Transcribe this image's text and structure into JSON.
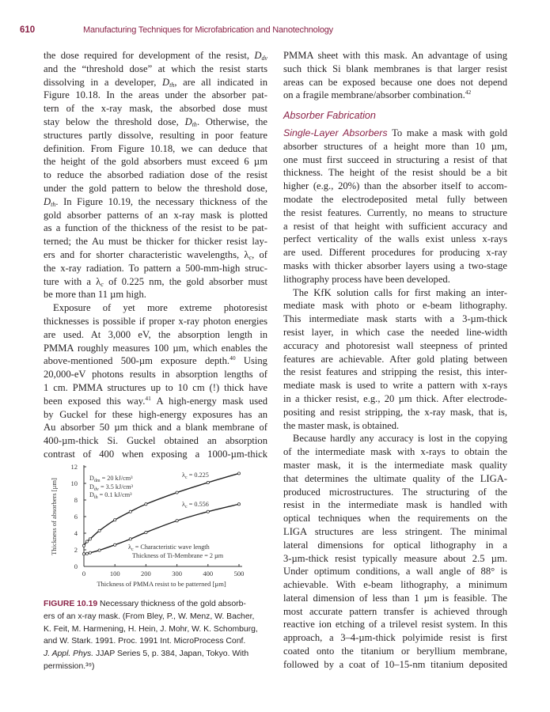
{
  "header": {
    "page_number": "610",
    "title": "Manufacturing Techniques for Microfabrication and Nanotechnology"
  },
  "left_column": {
    "paragraphs": [
      {
        "indent": false,
        "continues": false,
        "lines": [
          [
            "the dose required for development of the resist, ",
            {
              "i": "D"
            },
            {
              "sub": "dv"
            }
          ],
          "and the “threshold dose” at which the resist starts",
          [
            "dissolving in a developer, ",
            {
              "i": "D"
            },
            {
              "sub": "th"
            },
            ", are all indicated in"
          ],
          "Figure 10.18. In the areas under the absorber pat-",
          "tern of the x-ray mask, the absorbed dose must",
          [
            "stay below the threshold dose, ",
            {
              "i": "D"
            },
            {
              "sub": "th"
            },
            ". Otherwise, the"
          ],
          "structures partly dissolve, resulting in poor feature",
          "definition. From Figure 10.18, we can deduce that",
          "the height of the gold absorbers must exceed 6 µm",
          "to reduce the absorbed radiation dose of the resist",
          "under the gold pattern to below the threshold dose,",
          [
            {
              "i": "D"
            },
            {
              "sub": "th"
            },
            ". In Figure 10.19, the necessary thickness of the"
          ],
          "gold absorber patterns of an x-ray mask is plotted",
          "as a function of the thickness of the resist to be pat-",
          "terned; the Au must be thicker for thicker resist lay-",
          [
            "ers and for shorter characteristic wavelengths, λ",
            {
              "sub": "c"
            },
            ", of"
          ],
          "the x-ray radiation. To pattern a 500-mm-high struc-",
          [
            "ture with a λ",
            {
              "sub": "c"
            },
            " of 0.225 nm, the gold absorber must"
          ],
          "be more than 11 µm high."
        ]
      },
      {
        "indent": true,
        "continues": true,
        "lines": [
          "Exposure of yet more extreme photoresist",
          "thicknesses is possible if proper x-ray photon energies",
          "are used. At 3,000 eV, the absorption length in",
          "PMMA roughly measures 100 µm, which enables the",
          [
            "above-mentioned 500-µm exposure depth.",
            {
              "sup": "40"
            },
            " Using"
          ],
          "20,000-eV photons results in absorption lengths of",
          "1 cm. PMMA structures up to 10 cm (!) thick have",
          [
            "been exposed this way.",
            {
              "sup": "41"
            },
            " A high-energy mask used"
          ],
          "by Guckel for these high-energy exposures has an",
          "Au absorber 50 µm thick and a blank membrane of",
          "400-µm-thick Si. Guckel obtained an absorption",
          "contrast of 400 when exposing a 1000-µm-thick"
        ]
      }
    ]
  },
  "right_column": {
    "top_paragraphs": [
      {
        "indent": false,
        "continues": false,
        "lines": [
          "PMMA sheet with this mask. An advantage of using",
          "such thick Si blank membranes is that larger resist",
          "areas can be exposed because one does not depend",
          [
            "on a fragile membrane/absorber combination.",
            {
              "sup": "42"
            }
          ]
        ]
      }
    ],
    "section_heading": "Absorber Fabrication",
    "paragraphs": [
      {
        "indent": false,
        "continues": false,
        "lines": [
          [
            {
              "runin": "Single-Layer Absorbers"
            },
            "   To make a mask with gold"
          ],
          "absorber structures of a height more than 10 µm,",
          "one must first succeed in structuring a resist of that",
          "thickness. The height of the resist should be a bit",
          "higher (e.g., 20%) than the absorber itself to accom-",
          "modate the electrodeposited metal fully between",
          "the resist features. Currently, no means to structure",
          "a resist of that height with sufficient accuracy and",
          "perfect verticality of the walls exist unless x-rays",
          "are used. Different procedures for producing x-ray",
          "masks with thicker absorber layers using a two-stage",
          "lithography process have been developed."
        ]
      },
      {
        "indent": true,
        "continues": false,
        "lines": [
          "The KfK solution calls for first making an inter-",
          "mediate mask with photo or e-beam lithography.",
          "This intermediate mask starts with a 3-µm-thick",
          "resist layer, in which case the needed line-width",
          "accuracy and photoresist wall steepness of printed",
          "features are achievable. After gold plating between",
          "the resist features and stripping the resist, this inter-",
          "mediate mask is used to write a pattern with x-rays",
          "in a thicker resist, e.g., 20 µm thick. After electrode-",
          "positing and resist stripping, the x-ray mask, that is,",
          "the master mask, is obtained."
        ]
      },
      {
        "indent": true,
        "continues": true,
        "lines": [
          "Because hardly any accuracy is lost in the copying",
          "of the intermediate mask with x-rays to obtain the",
          "master mask, it is the intermediate mask quality",
          "that determines the ultimate quality of the LIGA-",
          "produced microstructures. The structuring of the",
          "resist in the intermediate mask is handled with",
          "optical techniques when the requirements on the",
          "LIGA structures are less stringent. The minimal",
          "lateral dimensions for optical lithography in a",
          "3-µm-thick resist typically measure about 2.5 µm.",
          "Under optimum conditions, a wall angle of 88° is",
          "achievable. With e-beam lithography, a minimum",
          "lateral dimension of less than 1 µm is feasible. The",
          "most accurate pattern transfer is achieved through",
          "reactive ion etching of a trilevel resist system. In this",
          "approach, a 3–4-µm-thick polyimide resist is first",
          "coated onto the titanium or beryllium membrane,",
          "followed by a coat of 10–15-nm titanium deposited"
        ]
      }
    ]
  },
  "figure": {
    "caption_label": "FIGURE 10.19",
    "caption_lines": [
      " Necessary thickness of the gold absorb-",
      "ers of an x-ray mask. (From Bley, P., W. Menz, W. Bacher,",
      "K. Feit, M. Harmening, H. Hein, J. Mohr, W. K. Schomburg,",
      "and W. Stark. 1991. Proc. 1991 Int. MicroProcess Conf.",
      [
        "J. Appl. Phys.",
        " JJAP Series 5, p. 384, Japan, Tokyo. With"
      ],
      "permission.³⁹)"
    ]
  },
  "chart_data": {
    "type": "line",
    "xlabel": "Thickness of PMMA resist to be patterned [µm]",
    "ylabel": "Thickness of absorbers [µm]",
    "xlim": [
      0,
      500
    ],
    "ylim": [
      0,
      12
    ],
    "x_ticks": [
      "0",
      "100",
      "200",
      "300",
      "400",
      "500"
    ],
    "y_ticks": [
      "0",
      "2",
      "4",
      "6",
      "8",
      "10",
      "12"
    ],
    "grid": false,
    "marker": "open-circle",
    "series": [
      {
        "name": "λc = 0.225",
        "x": [
          0,
          10,
          20,
          50,
          100,
          150,
          200,
          300,
          400,
          500
        ],
        "y": [
          2.5,
          3.0,
          3.3,
          4.3,
          5.6,
          6.6,
          7.5,
          8.9,
          10.1,
          11.2
        ]
      },
      {
        "name": "λc = 0.556",
        "x": [
          0,
          10,
          20,
          50,
          100,
          150,
          200,
          300,
          400,
          500
        ],
        "y": [
          1.5,
          1.55,
          1.65,
          1.95,
          2.6,
          3.3,
          4.1,
          5.5,
          6.6,
          7.5
        ]
      }
    ],
    "annotations": {
      "dose_dm": "Ddm = 20 kJ/cm³",
      "dose_dv": "Ddv = 3.5 kJ/cm³",
      "dose_th": "Dth = 0.1 kJ/cm³",
      "legend_note_1": "λc = Characteristic wave length",
      "legend_note_2": "Thickness of Ti-Membrane = 2 µm"
    },
    "colors": {
      "line": "#222222",
      "marker_fill": "#ffffff"
    }
  },
  "colors": {
    "accent": "#8a2347",
    "text": "#231f20"
  }
}
